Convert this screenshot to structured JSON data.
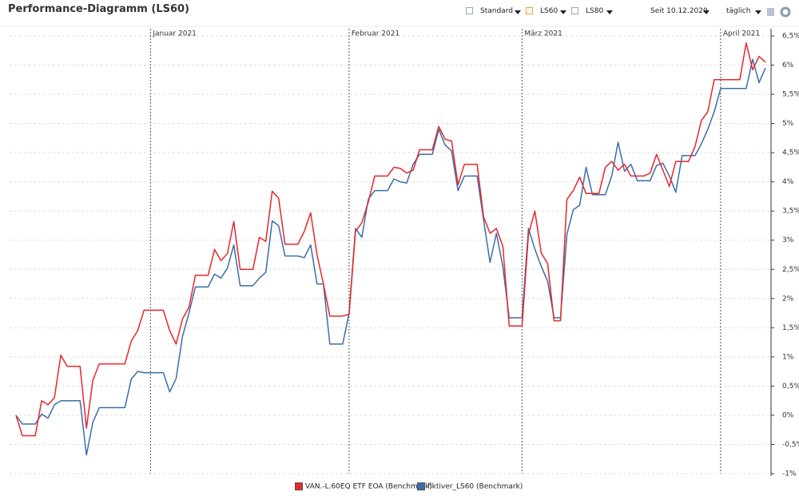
{
  "title": "Performance-Diagramm (LS60)",
  "toolbar": [
    "Standard",
    "LS60",
    "LS80",
    "Seit 10.12.2020",
    "täglich"
  ],
  "chart_data": {
    "type": "line",
    "categories": [
      null,
      null,
      null,
      null,
      null,
      null,
      null,
      null,
      null,
      null,
      null,
      null,
      null,
      null,
      null,
      null,
      null,
      null,
      null,
      null,
      null,
      "Januar 2021",
      null,
      null,
      null,
      null,
      null,
      null,
      null,
      null,
      null,
      null,
      null,
      null,
      null,
      null,
      null,
      null,
      null,
      null,
      null,
      null,
      null,
      null,
      null,
      null,
      null,
      null,
      null,
      null,
      null,
      null,
      "Februar 2021",
      null,
      null,
      null,
      null,
      null,
      null,
      null,
      null,
      null,
      null,
      null,
      null,
      null,
      null,
      null,
      null,
      null,
      null,
      null,
      null,
      null,
      null,
      null,
      null,
      null,
      null,
      "März 2021",
      null,
      null,
      null,
      null,
      null,
      null,
      null,
      null,
      null,
      null,
      null,
      null,
      null,
      null,
      null,
      null,
      null,
      null,
      null,
      null,
      null,
      null,
      null,
      null,
      null,
      null,
      null,
      null,
      null,
      null,
      "April 2021",
      null,
      null,
      null,
      null,
      null,
      null,
      null
    ],
    "series": [
      {
        "name": "VAN.-L.60EQ ETF EOA (Benchmark)",
        "color": "#e8262b",
        "values": [
          0,
          -0.35,
          -0.35,
          -0.35,
          0.25,
          0.18,
          0.3,
          1.03,
          0.84,
          0.84,
          0.84,
          -0.22,
          0.6,
          0.88,
          0.88,
          0.88,
          0.88,
          0.88,
          1.27,
          1.45,
          1.8,
          1.8,
          1.8,
          1.8,
          1.45,
          1.22,
          1.65,
          1.85,
          2.4,
          2.4,
          2.4,
          2.84,
          2.65,
          2.77,
          3.32,
          2.5,
          2.5,
          2.5,
          3.05,
          2.98,
          3.84,
          3.72,
          2.93,
          2.93,
          2.93,
          3.15,
          3.47,
          2.75,
          2.25,
          1.7,
          1.7,
          1.7,
          1.73,
          3.15,
          3.3,
          3.65,
          4.1,
          4.1,
          4.1,
          4.25,
          4.23,
          4.15,
          4.2,
          4.55,
          4.55,
          4.55,
          4.95,
          4.73,
          4.7,
          3.95,
          4.3,
          4.3,
          4.3,
          3.4,
          3.12,
          3.2,
          2.9,
          1.53,
          1.53,
          1.53,
          3.1,
          3.5,
          2.78,
          2.6,
          1.62,
          1.62,
          3.7,
          3.85,
          4.08,
          3.8,
          3.8,
          3.8,
          4.25,
          4.35,
          4.2,
          4.3,
          4.1,
          4.1,
          4.1,
          4.15,
          4.47,
          4.2,
          3.92,
          4.35,
          4.35,
          4.35,
          4.6,
          5.05,
          5.2,
          5.75,
          5.75,
          5.75,
          5.75,
          5.75,
          6.38,
          5.92,
          6.15,
          6.05
        ]
      },
      {
        "name": "fiktiver_LS60 (Benchmark)",
        "color": "#3a6ea8",
        "values": [
          0,
          -0.15,
          -0.15,
          -0.15,
          0.02,
          -0.05,
          0.18,
          0.25,
          0.25,
          0.25,
          0.25,
          -0.68,
          -0.12,
          0.13,
          0.13,
          0.13,
          0.13,
          0.13,
          0.62,
          0.75,
          0.73,
          0.73,
          0.73,
          0.73,
          0.4,
          0.63,
          1.35,
          1.75,
          2.2,
          2.2,
          2.2,
          2.42,
          2.35,
          2.52,
          2.92,
          2.22,
          2.22,
          2.22,
          2.35,
          2.45,
          3.33,
          3.25,
          2.73,
          2.73,
          2.73,
          2.7,
          2.92,
          2.25,
          2.25,
          1.22,
          1.22,
          1.22,
          1.75,
          3.2,
          3.05,
          3.7,
          3.85,
          3.85,
          3.85,
          4.05,
          4.0,
          3.98,
          4.3,
          4.47,
          4.47,
          4.47,
          4.9,
          4.63,
          4.53,
          3.85,
          4.1,
          4.1,
          4.1,
          3.35,
          2.62,
          3.12,
          2.55,
          1.67,
          1.67,
          1.67,
          3.2,
          2.85,
          2.55,
          2.3,
          1.67,
          1.67,
          3.1,
          3.52,
          3.6,
          4.25,
          3.78,
          3.78,
          3.78,
          4.1,
          4.68,
          4.18,
          4.3,
          4.02,
          4.02,
          4.02,
          4.28,
          4.32,
          4.1,
          3.82,
          4.45,
          4.45,
          4.45,
          4.65,
          4.9,
          5.2,
          5.6,
          5.6,
          5.6,
          5.6,
          5.6,
          6.1,
          5.7,
          5.95
        ]
      }
    ],
    "ylim": [
      -1,
      6.5
    ],
    "yticks": [
      {
        "value": -1,
        "label": "-1%"
      },
      {
        "value": -0.5,
        "label": "-0,5%"
      },
      {
        "value": 0,
        "label": "0%"
      },
      {
        "value": 0.5,
        "label": "0,5%"
      },
      {
        "value": 1,
        "label": "1%"
      },
      {
        "value": 1.5,
        "label": "1,5%"
      },
      {
        "value": 2,
        "label": "2%"
      },
      {
        "value": 2.5,
        "label": "2,5%"
      },
      {
        "value": 3,
        "label": "3%"
      },
      {
        "value": 3.5,
        "label": "3,5%"
      },
      {
        "value": 4,
        "label": "4%"
      },
      {
        "value": 4.5,
        "label": "4,5%"
      },
      {
        "value": 5,
        "label": "5%"
      },
      {
        "value": 5.5,
        "label": "5,5%"
      },
      {
        "value": 6,
        "label": "6%"
      },
      {
        "value": 6.5,
        "label": "6,5%"
      }
    ],
    "grid": true
  }
}
